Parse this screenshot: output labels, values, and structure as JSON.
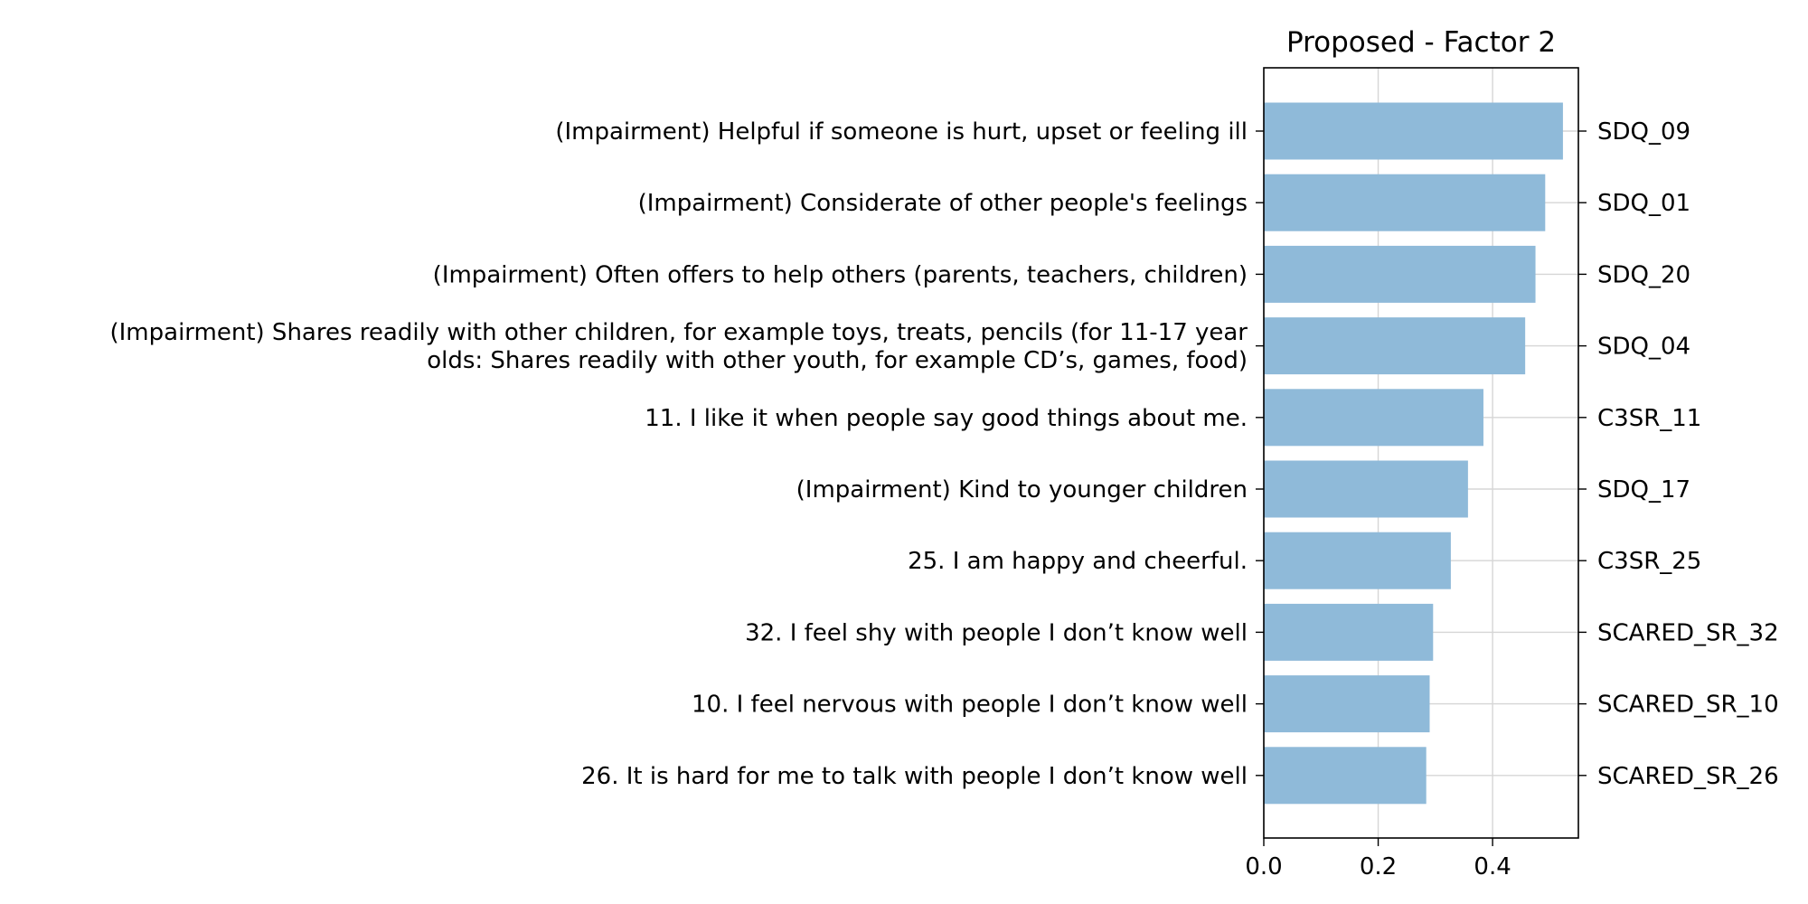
{
  "chart_data": {
    "type": "bar",
    "orientation": "horizontal",
    "title": "Proposed - Factor 2",
    "xlim": [
      0,
      0.55
    ],
    "xticks": [
      {
        "value": 0.0,
        "label": "0.0"
      },
      {
        "value": 0.2,
        "label": "0.2"
      },
      {
        "value": 0.4,
        "label": "0.4"
      }
    ],
    "grid": true,
    "bar_color": "#8fbad9",
    "categories": [
      {
        "label": [
          "(Impairment) Helpful if someone is hurt, upset or feeling ill"
        ],
        "code": "SDQ_09",
        "value": 0.523
      },
      {
        "label": [
          "(Impairment) Considerate of other people's feelings"
        ],
        "code": "SDQ_01",
        "value": 0.492
      },
      {
        "label": [
          "(Impairment) Often offers to help others (parents, teachers, children)"
        ],
        "code": "SDQ_20",
        "value": 0.475
      },
      {
        "label": [
          "(Impairment) Shares readily with other children, for example toys, treats, pencils (for 11-17 year",
          "olds: Shares readily with other youth, for example CD’s, games, food)"
        ],
        "code": "SDQ_04",
        "value": 0.457
      },
      {
        "label": [
          "11. I like it when people say good things about me."
        ],
        "code": "C3SR_11",
        "value": 0.384
      },
      {
        "label": [
          "(Impairment) Kind to younger children"
        ],
        "code": "SDQ_17",
        "value": 0.357
      },
      {
        "label": [
          "25. I am happy and cheerful."
        ],
        "code": "C3SR_25",
        "value": 0.327
      },
      {
        "label": [
          "32. I feel shy with people I don’t know well"
        ],
        "code": "SCARED_SR_32",
        "value": 0.296
      },
      {
        "label": [
          "10. I feel nervous with people I don’t know well"
        ],
        "code": "SCARED_SR_10",
        "value": 0.29
      },
      {
        "label": [
          "26. It is hard for me to talk with people I don’t know well"
        ],
        "code": "SCARED_SR_26",
        "value": 0.284
      }
    ]
  }
}
